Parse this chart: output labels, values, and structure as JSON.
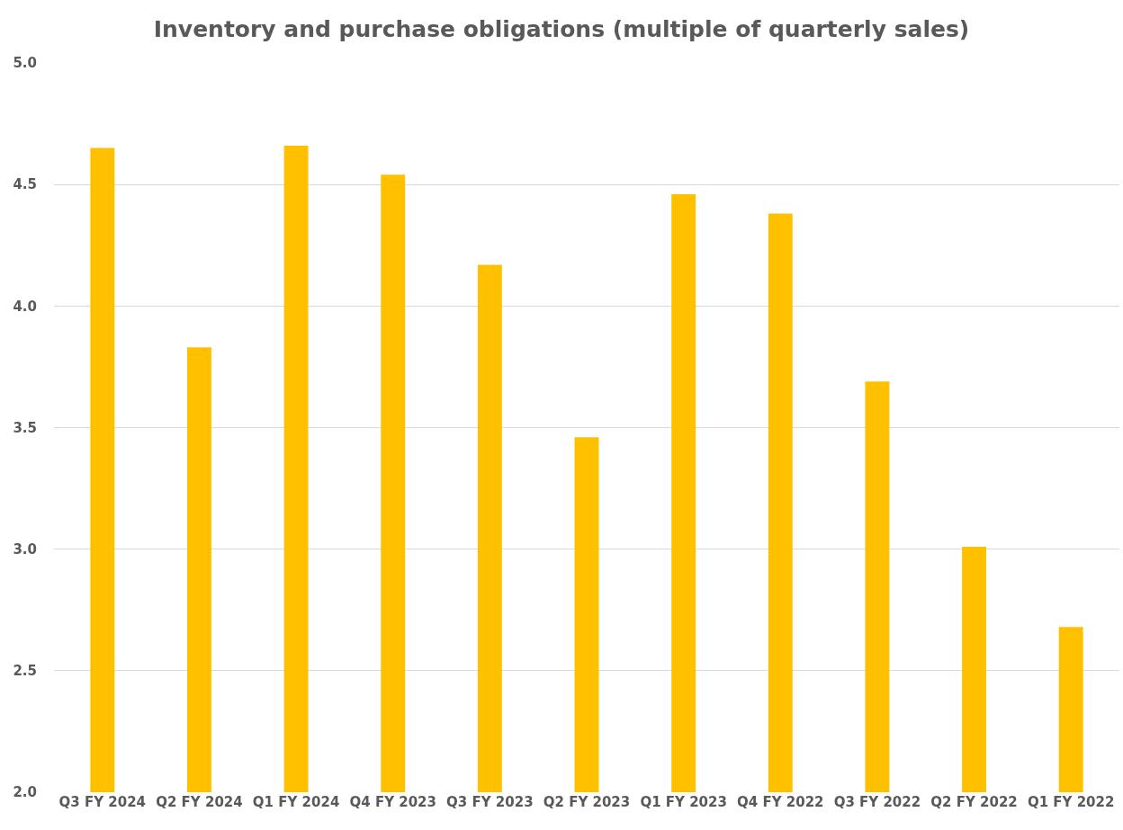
{
  "chart_data": {
    "type": "bar",
    "title": "Inventory and purchase obligations (multiple of quarterly sales)",
    "categories": [
      "Q3 FY 2024",
      "Q2 FY 2024",
      "Q1 FY 2024",
      "Q4 FY 2023",
      "Q3 FY 2023",
      "Q2 FY 2023",
      "Q1 FY 2023",
      "Q4 FY 2022",
      "Q3 FY 2022",
      "Q2 FY 2022",
      "Q1 FY 2022"
    ],
    "values": [
      4.65,
      3.83,
      4.66,
      4.54,
      4.17,
      3.46,
      4.46,
      4.38,
      3.69,
      3.01,
      2.68
    ],
    "color": "#ffc000",
    "ylim": [
      2,
      5
    ],
    "yticks": [
      {
        "value": 2,
        "label": "2.0"
      },
      {
        "value": 2.5,
        "label": "2.5"
      },
      {
        "value": 3,
        "label": "3.0"
      },
      {
        "value": 3.5,
        "label": "3.5"
      },
      {
        "value": 4,
        "label": "4.0"
      },
      {
        "value": 4.5,
        "label": "4.5"
      },
      {
        "value": 5,
        "label": "5.0"
      }
    ],
    "grid": "y"
  }
}
